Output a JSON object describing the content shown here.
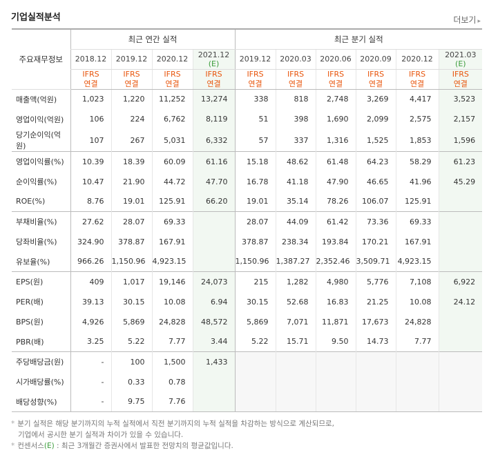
{
  "section_title": "기업실적분석",
  "more_label": "더보기",
  "table": {
    "label_header": "주요재무정보",
    "annual_header": "최근 연간 실적",
    "quarter_header": "최근 분기 실적",
    "annual_dates": [
      "2018.12",
      "2019.12",
      "2020.12",
      "2021.12"
    ],
    "annual_estimate_mark": "(E)",
    "quarter_dates": [
      "2019.12",
      "2020.03",
      "2020.06",
      "2020.09",
      "2020.12",
      "2021.03"
    ],
    "quarter_estimate_mark": "(E)",
    "ifrs_line1": "IFRS",
    "ifrs_line2": "연결",
    "rows": [
      {
        "label": "매출액(억원)",
        "annual": [
          "1,023",
          "1,220",
          "11,252",
          "13,274"
        ],
        "quarter": [
          "338",
          "818",
          "2,748",
          "3,269",
          "4,417",
          "3,523"
        ]
      },
      {
        "label": "영업이익(억원)",
        "annual": [
          "106",
          "224",
          "6,762",
          "8,119"
        ],
        "quarter": [
          "51",
          "398",
          "1,690",
          "2,099",
          "2,575",
          "2,157"
        ]
      },
      {
        "label": "당기순이익(억원)",
        "annual": [
          "107",
          "267",
          "5,031",
          "6,332"
        ],
        "quarter": [
          "57",
          "337",
          "1,316",
          "1,525",
          "1,853",
          "1,596"
        ]
      },
      {
        "label": "영업이익률(%)",
        "annual": [
          "10.39",
          "18.39",
          "60.09",
          "61.16"
        ],
        "quarter": [
          "15.18",
          "48.62",
          "61.48",
          "64.23",
          "58.29",
          "61.23"
        ]
      },
      {
        "label": "순이익률(%)",
        "annual": [
          "10.47",
          "21.90",
          "44.72",
          "47.70"
        ],
        "quarter": [
          "16.78",
          "41.18",
          "47.90",
          "46.65",
          "41.96",
          "45.29"
        ]
      },
      {
        "label": "ROE(%)",
        "annual": [
          "8.76",
          "19.01",
          "125.91",
          "66.20"
        ],
        "quarter": [
          "19.01",
          "35.14",
          "78.26",
          "106.07",
          "125.91",
          ""
        ]
      },
      {
        "label": "부채비율(%)",
        "annual": [
          "27.62",
          "28.07",
          "69.33",
          ""
        ],
        "quarter": [
          "28.07",
          "44.09",
          "61.42",
          "73.36",
          "69.33",
          ""
        ]
      },
      {
        "label": "당좌비율(%)",
        "annual": [
          "324.90",
          "378.87",
          "167.91",
          ""
        ],
        "quarter": [
          "378.87",
          "238.34",
          "193.84",
          "170.21",
          "167.91",
          ""
        ]
      },
      {
        "label": "유보율(%)",
        "annual": [
          "966.26",
          "1,150.96",
          "4,923.15",
          ""
        ],
        "quarter": [
          "1,150.96",
          "1,387.27",
          "2,352.46",
          "3,509.71",
          "4,923.15",
          ""
        ]
      },
      {
        "label": "EPS(원)",
        "annual": [
          "409",
          "1,017",
          "19,146",
          "24,073"
        ],
        "quarter": [
          "215",
          "1,282",
          "4,980",
          "5,776",
          "7,108",
          "6,922"
        ]
      },
      {
        "label": "PER(배)",
        "annual": [
          "39.13",
          "30.15",
          "10.08",
          "6.94"
        ],
        "quarter": [
          "30.15",
          "52.68",
          "16.83",
          "21.25",
          "10.08",
          "24.12"
        ]
      },
      {
        "label": "BPS(원)",
        "annual": [
          "4,926",
          "5,869",
          "24,828",
          "48,572"
        ],
        "quarter": [
          "5,869",
          "7,071",
          "11,871",
          "17,673",
          "24,828",
          ""
        ]
      },
      {
        "label": "PBR(배)",
        "annual": [
          "3.25",
          "5.22",
          "7.77",
          "3.44"
        ],
        "quarter": [
          "5.22",
          "15.71",
          "9.50",
          "14.73",
          "7.77",
          ""
        ]
      },
      {
        "label": "주당배당금(원)",
        "annual": [
          "-",
          "100",
          "1,500",
          "1,433"
        ],
        "quarter": [
          "",
          "",
          "",
          "",
          "",
          ""
        ]
      },
      {
        "label": "시가배당률(%)",
        "annual": [
          "-",
          "0.33",
          "0.78",
          ""
        ],
        "quarter": [
          "",
          "",
          "",
          "",
          "",
          ""
        ]
      },
      {
        "label": "배당성향(%)",
        "annual": [
          "-",
          "9.75",
          "7.76",
          ""
        ],
        "quarter": [
          "",
          "",
          "",
          "",
          "",
          ""
        ]
      }
    ]
  },
  "notes": {
    "line1": "분기 실적은 해당 분기까지의 누적 실적에서 직전 분기까지의 누적 실적을 차감하는 방식으로 계산되므로,",
    "line2": "기업에서 공시한 분기 실적과 차이가 있을 수 있습니다.",
    "line3_prefix": "컨센서스",
    "line3_mark": "(E)",
    "line3_suffix": " : 최근 3개월간 증권사에서 발표한 전망치의 평균값입니다."
  },
  "colors": {
    "ifrs": "#e8550c",
    "estimate_green": "#3a9b3a",
    "estimate_bg": "#f2f8f2"
  }
}
